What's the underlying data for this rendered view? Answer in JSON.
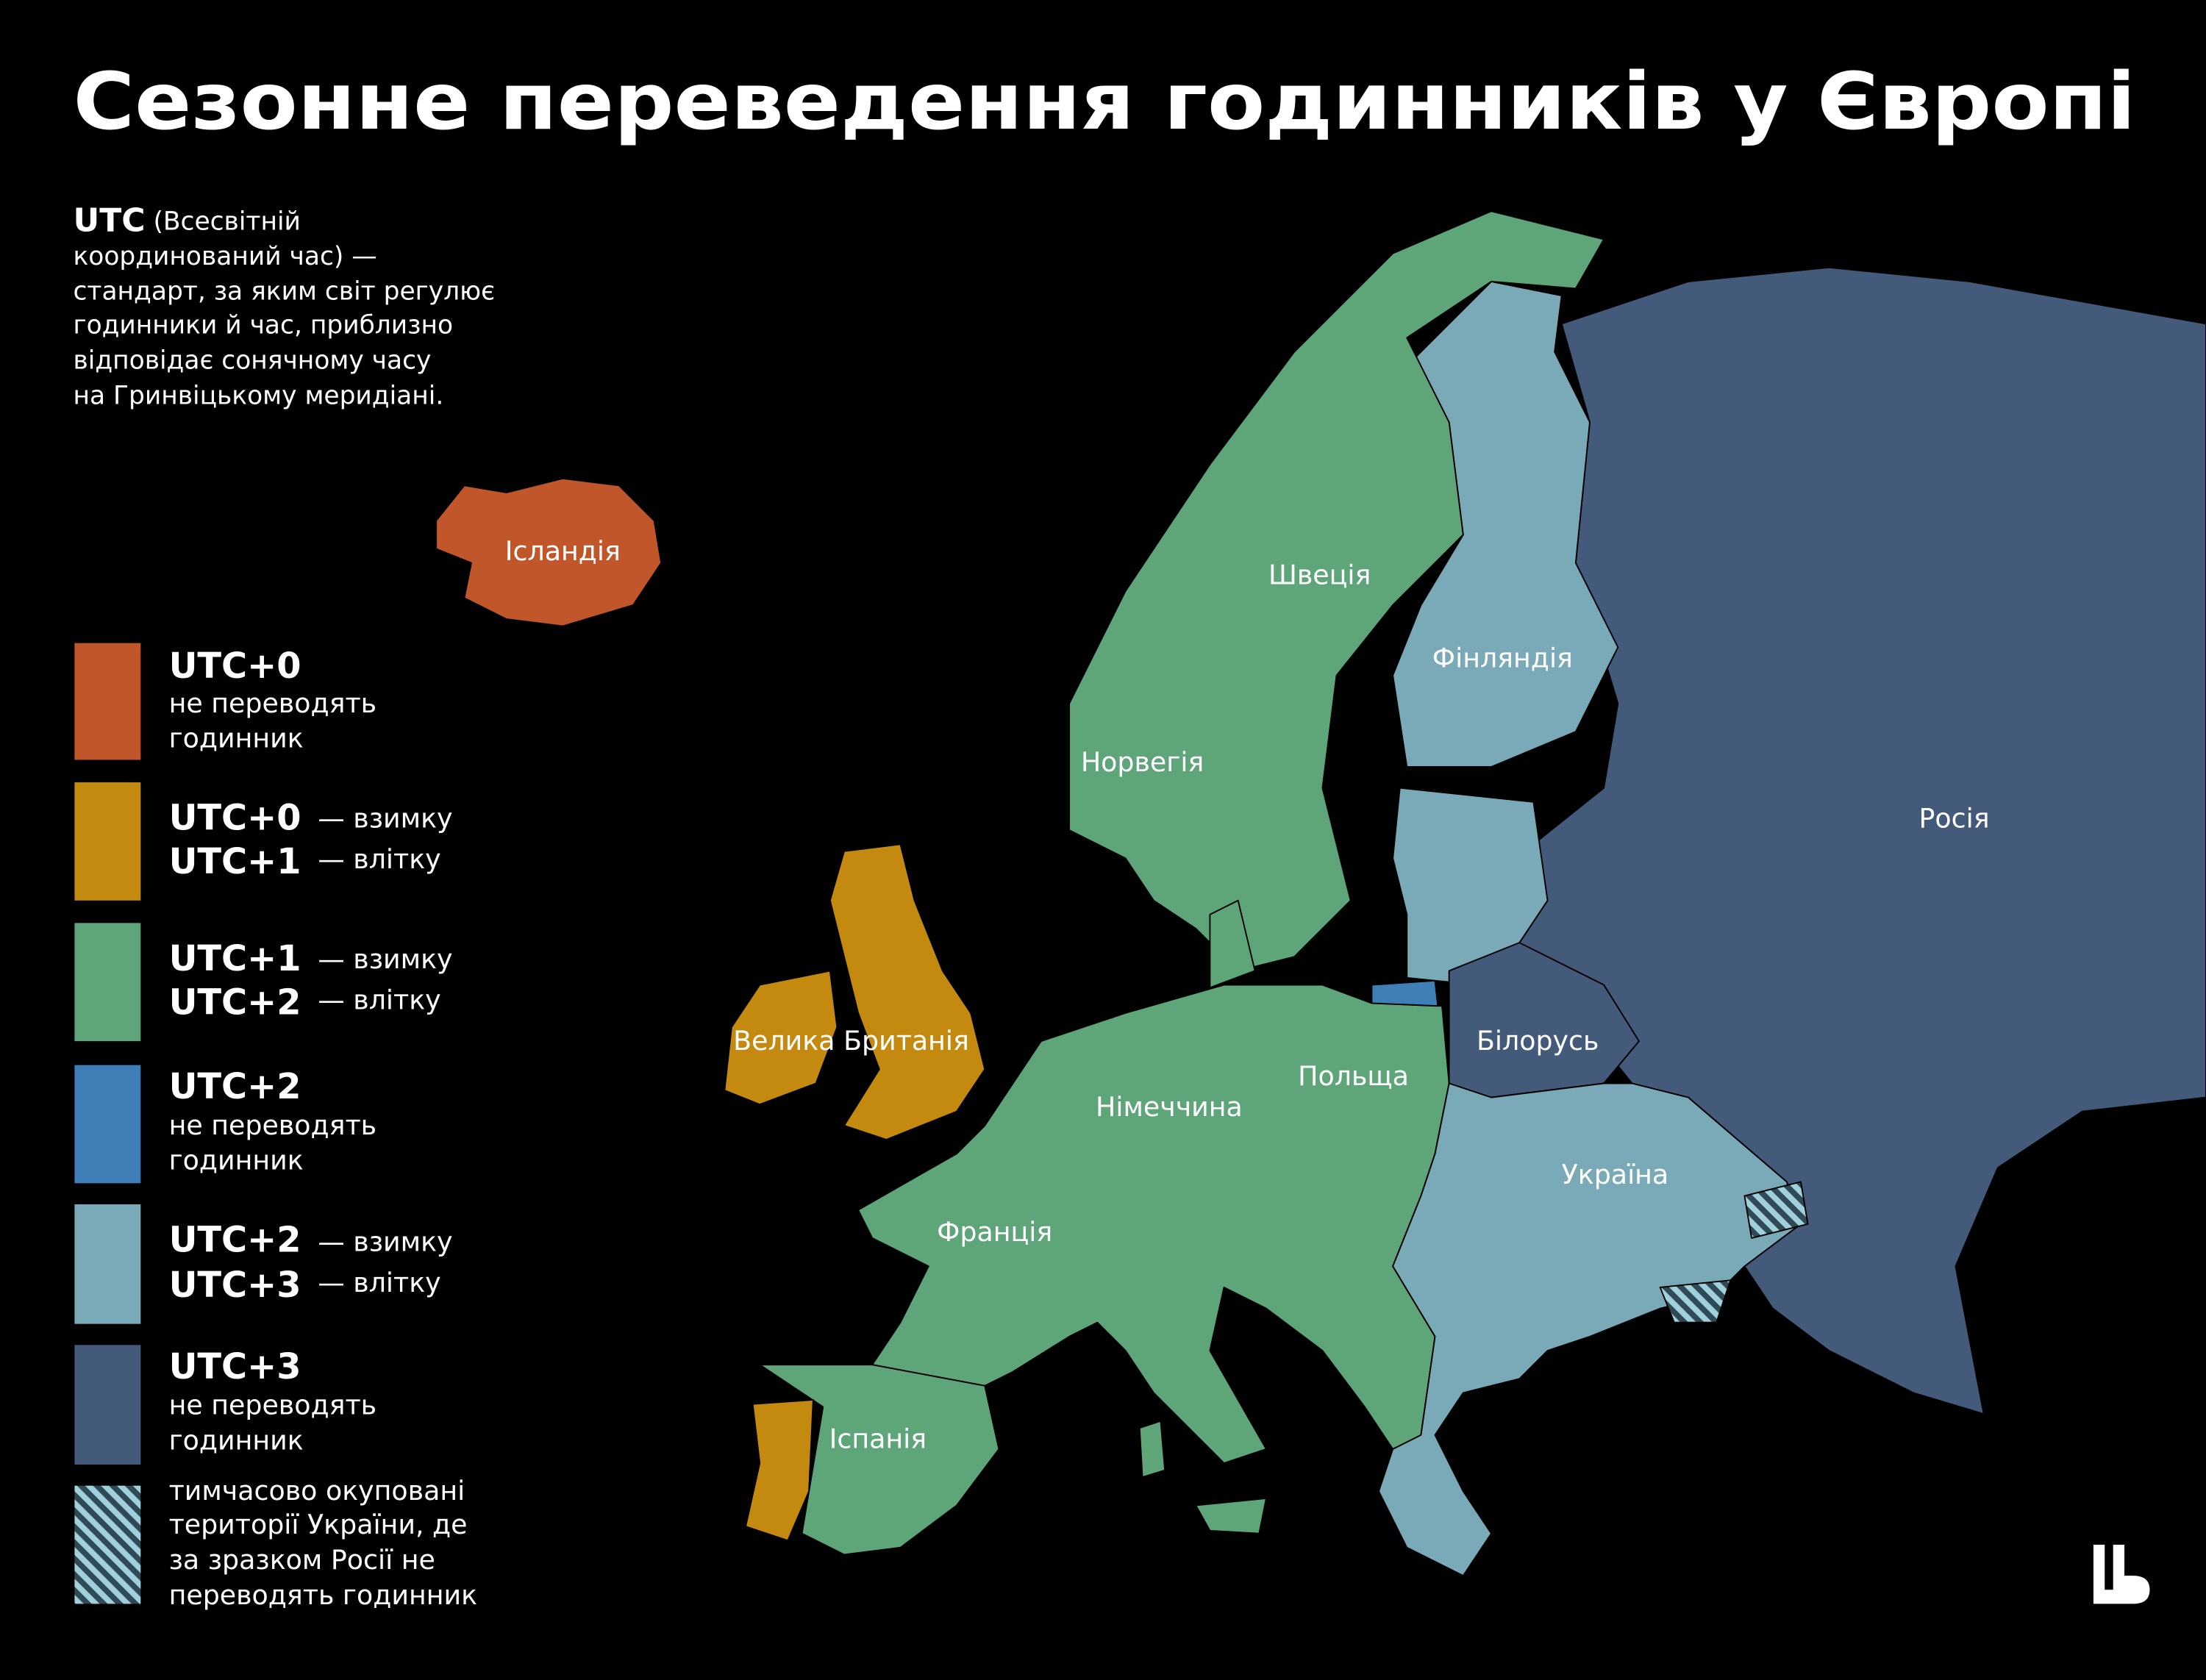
{
  "title": "Сезонне переведення годинників у Європі",
  "intro": {
    "term": "UTC",
    "lines": [
      "(Всесвітній",
      "координований час) —",
      "стандарт, за яким світ регулює",
      "годинники й час, приблизно",
      "відповідає сонячному часу",
      "на Гринвіцькому меридіані."
    ]
  },
  "legend": [
    {
      "zone": "UTC+0",
      "note": [
        "не переводять",
        "годинник"
      ]
    },
    {
      "rows": [
        {
          "zone": "UTC+0",
          "note": "— взимку"
        },
        {
          "zone": "UTC+1",
          "note": "— влітку"
        }
      ]
    },
    {
      "rows": [
        {
          "zone": "UTC+1",
          "note": "— взимку"
        },
        {
          "zone": "UTC+2",
          "note": "— влітку"
        }
      ]
    },
    {
      "zone": "UTC+2",
      "note": [
        "не переводять",
        "годинник"
      ]
    },
    {
      "rows": [
        {
          "zone": "UTC+2",
          "note": "— взимку"
        },
        {
          "zone": "UTC+3",
          "note": "— влітку"
        }
      ]
    },
    {
      "zone": "UTC+3",
      "note": [
        "не переводять",
        "годинник"
      ]
    },
    {
      "note": [
        "тимчасово окуповані",
        "території України, де",
        "за зразком Росії не",
        "переводять годинник"
      ]
    }
  ],
  "countries": [
    "Ісландія",
    "Швеція",
    "Фінляндія",
    "Норвегія",
    "Росія",
    "Велика Британія",
    "Білорусь",
    "Польща",
    "Німеччина",
    "Україна",
    "Франція",
    "Іспанія"
  ]
}
